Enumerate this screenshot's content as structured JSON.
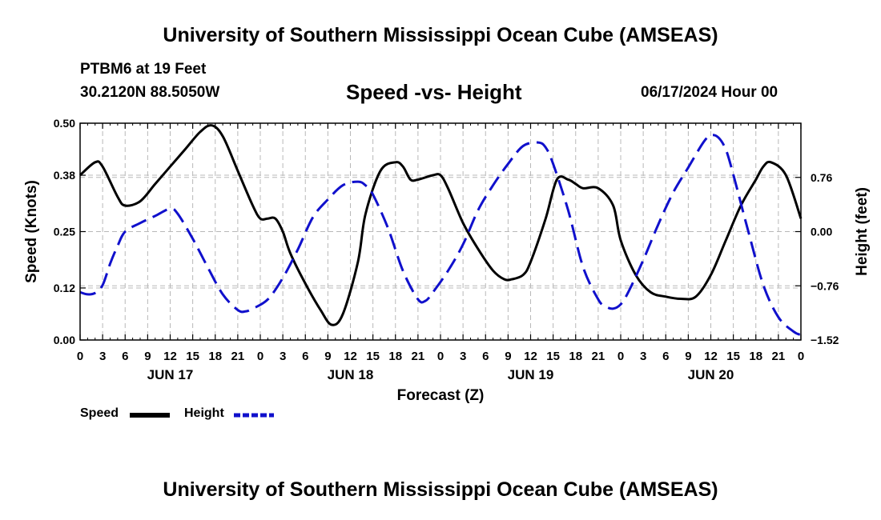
{
  "page": {
    "title": "University of Southern Mississippi Ocean Cube (AMSEAS)",
    "station": "PTBM6 at 19 Feet",
    "coordinates": "30.2120N  88.5050W",
    "subtitle": "Speed -vs- Height",
    "datestamp": "06/17/2024 Hour 00",
    "footer_title": "University of Southern Mississippi Ocean Cube (AMSEAS)"
  },
  "chart_data": {
    "type": "line",
    "title": "Speed -vs- Height",
    "xlabel": "Forecast (Z)",
    "ylabel_left": "Speed (Knots)",
    "ylabel_right": "Height (feet)",
    "x_range_hours": [
      0,
      96
    ],
    "x_tick_step_hours": 3,
    "x_tick_labels": [
      "0",
      "3",
      "6",
      "9",
      "12",
      "15",
      "18",
      "21",
      "0",
      "3",
      "6",
      "9",
      "12",
      "15",
      "18",
      "21",
      "0",
      "3",
      "6",
      "9",
      "12",
      "15",
      "18",
      "21",
      "0",
      "3",
      "6",
      "9",
      "12",
      "15",
      "18",
      "21",
      "0"
    ],
    "day_labels": [
      {
        "label": "JUN 17",
        "hour": 12
      },
      {
        "label": "JUN 18",
        "hour": 36
      },
      {
        "label": "JUN 19",
        "hour": 60
      },
      {
        "label": "JUN 20",
        "hour": 84
      }
    ],
    "left_axis": {
      "min": 0.0,
      "max": 0.5,
      "ticks": [
        "0.00",
        "0.12",
        "0.25",
        "0.38",
        "0.50"
      ]
    },
    "right_axis": {
      "min": -1.52,
      "max": 1.52,
      "ticks": [
        "-1.52",
        "-0.76",
        "0.00",
        "0.76"
      ]
    },
    "grid": true,
    "legend": {
      "position": "bottom-left",
      "entries": [
        "Speed",
        "Height"
      ]
    },
    "series": [
      {
        "name": "Speed",
        "axis": "left",
        "color": "#000000",
        "dash": "solid",
        "x": [
          0,
          2,
          3,
          5,
          6,
          8,
          10,
          12,
          14,
          16,
          17.5,
          19,
          21,
          23,
          24,
          25,
          26,
          27,
          28,
          30,
          32,
          33.5,
          35,
          37,
          38,
          40,
          42,
          43,
          44,
          45,
          47,
          48,
          49,
          51,
          53,
          55,
          56.5,
          57.5,
          59,
          60,
          62,
          63.5,
          65,
          66,
          67,
          69,
          71,
          72,
          74,
          76,
          78,
          80,
          82,
          84,
          86,
          88,
          90,
          91,
          92,
          94,
          96
        ],
        "values": [
          0.38,
          0.41,
          0.4,
          0.33,
          0.31,
          0.32,
          0.36,
          0.4,
          0.44,
          0.48,
          0.495,
          0.47,
          0.39,
          0.31,
          0.28,
          0.28,
          0.28,
          0.25,
          0.2,
          0.13,
          0.07,
          0.035,
          0.06,
          0.18,
          0.29,
          0.39,
          0.41,
          0.4,
          0.37,
          0.37,
          0.38,
          0.38,
          0.35,
          0.27,
          0.21,
          0.16,
          0.14,
          0.14,
          0.15,
          0.18,
          0.28,
          0.37,
          0.37,
          0.36,
          0.35,
          0.35,
          0.31,
          0.23,
          0.15,
          0.11,
          0.1,
          0.095,
          0.1,
          0.15,
          0.23,
          0.31,
          0.37,
          0.4,
          0.41,
          0.38,
          0.28
        ]
      },
      {
        "name": "Height",
        "axis": "right",
        "color": "#1010cc",
        "dash": "dashed",
        "x": [
          0,
          1,
          2,
          3,
          4,
          5,
          6,
          8,
          10,
          12,
          13,
          15,
          17,
          19,
          21,
          22,
          23,
          25,
          27,
          29,
          31,
          33,
          35,
          37,
          38,
          39,
          41,
          43,
          45,
          46,
          47,
          49,
          51,
          53,
          55,
          57,
          59,
          61,
          62,
          63,
          65,
          67,
          69,
          70,
          71,
          72,
          73,
          75,
          77,
          79,
          81,
          83,
          84,
          85,
          86,
          87,
          89,
          91,
          93,
          95,
          96
        ],
        "values": [
          -0.85,
          -0.88,
          -0.86,
          -0.75,
          -0.45,
          -0.2,
          0.0,
          0.12,
          0.22,
          0.32,
          0.25,
          -0.1,
          -0.5,
          -0.88,
          -1.1,
          -1.12,
          -1.08,
          -0.95,
          -0.65,
          -0.25,
          0.2,
          0.45,
          0.65,
          0.7,
          0.65,
          0.52,
          0.05,
          -0.55,
          -0.95,
          -0.97,
          -0.85,
          -0.55,
          -0.18,
          0.3,
          0.65,
          0.95,
          1.2,
          1.25,
          1.18,
          0.95,
          0.3,
          -0.5,
          -0.95,
          -1.05,
          -1.08,
          -1.02,
          -0.85,
          -0.4,
          0.1,
          0.55,
          0.9,
          1.25,
          1.35,
          1.32,
          1.15,
          0.8,
          0.0,
          -0.75,
          -1.2,
          -1.4,
          -1.45
        ]
      }
    ]
  }
}
